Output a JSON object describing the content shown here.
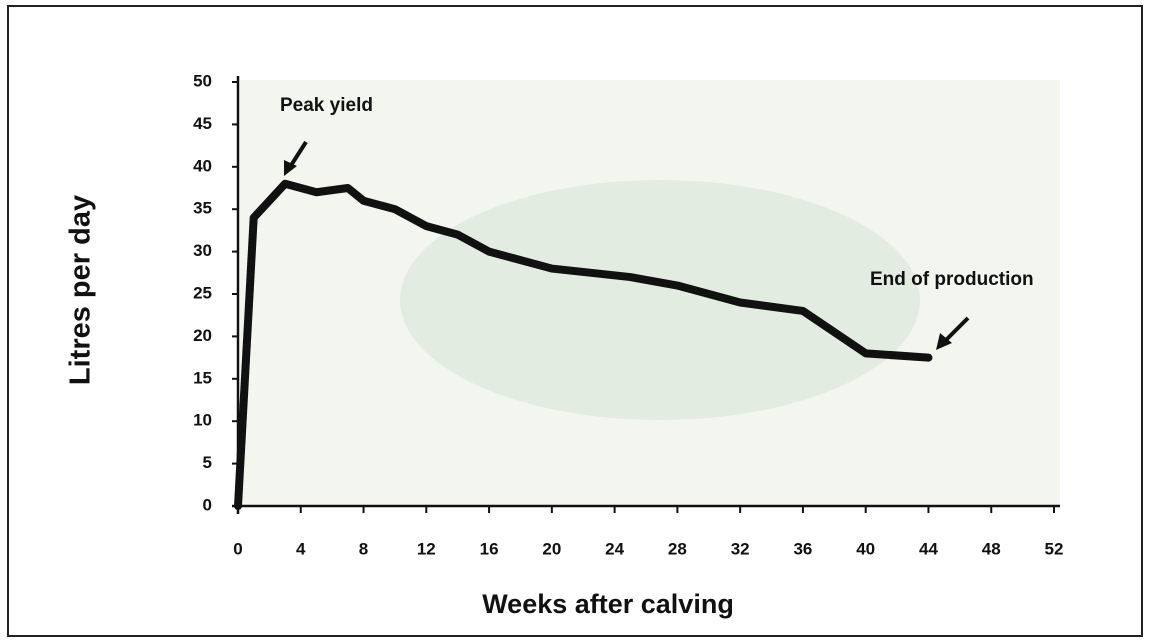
{
  "chart_data": {
    "type": "line",
    "x_label": "Weeks after calving",
    "y_label": "Litres per day",
    "annotations": [
      "Peak yield",
      "End of production"
    ],
    "color": "#111111",
    "x": [
      0,
      1,
      3,
      5,
      7,
      8,
      10,
      12,
      14,
      16,
      20,
      25,
      28,
      32,
      36,
      40,
      44
    ],
    "values": [
      0,
      34,
      38,
      37,
      37.5,
      36,
      35,
      33,
      32,
      30,
      28,
      27,
      26,
      24,
      23,
      18,
      17.5
    ],
    "xlim": [
      0,
      52
    ],
    "ylim": [
      0,
      50
    ],
    "xticks": [
      0,
      4,
      8,
      12,
      16,
      20,
      24,
      28,
      32,
      36,
      40,
      44,
      48,
      52
    ],
    "yticks": [
      0,
      5,
      10,
      15,
      20,
      25,
      30,
      35,
      40,
      45,
      50
    ]
  }
}
